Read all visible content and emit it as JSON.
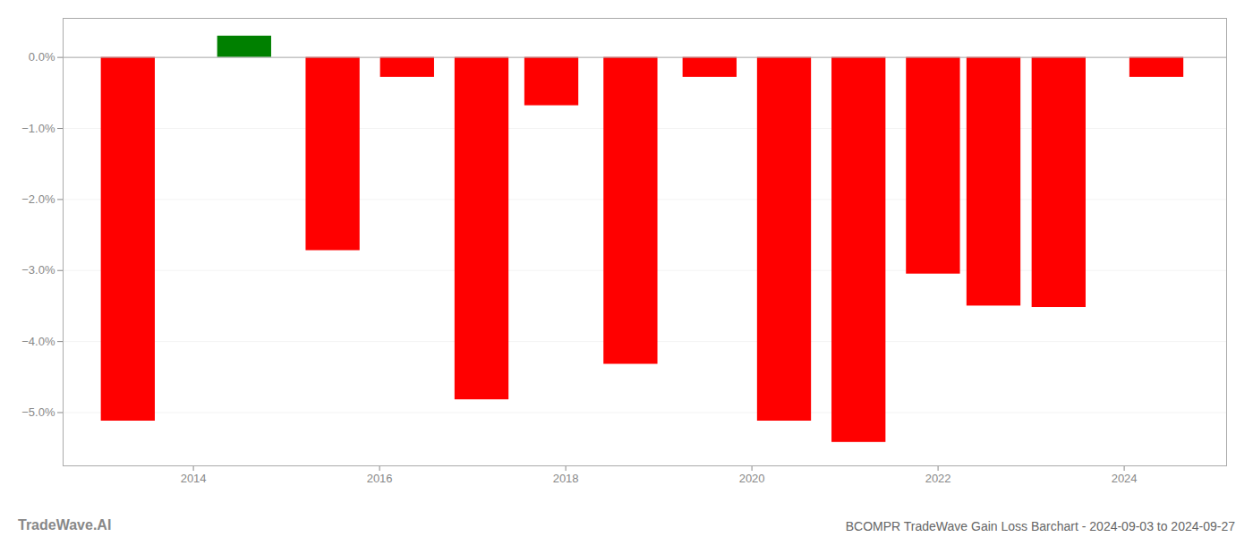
{
  "chart_data": {
    "type": "bar",
    "title": "BCOMPR TradeWave Gain Loss Barchart - 2024-09-03 to 2024-09-27",
    "annotations": [
      "TradeWave.AI"
    ],
    "x": [
      2013.3,
      2014.55,
      2015.5,
      2016.3,
      2017.1,
      2017.85,
      2018.7,
      2019.55,
      2020.35,
      2021.15,
      2021.95,
      2022.6,
      2023.3,
      2024.35
    ],
    "values": [
      -5.12,
      0.3,
      -2.72,
      -0.28,
      -4.82,
      -0.68,
      -4.32,
      -0.28,
      -5.12,
      -5.42,
      -3.05,
      -3.5,
      -3.52,
      -0.28
    ],
    "colors": [
      "#ff0000",
      "#008000",
      "#ff0000",
      "#ff0000",
      "#ff0000",
      "#ff0000",
      "#ff0000",
      "#ff0000",
      "#ff0000",
      "#ff0000",
      "#ff0000",
      "#ff0000",
      "#ff0000",
      "#ff0000"
    ],
    "xlim": [
      2012.6,
      2025.1
    ],
    "xticks": [
      2014,
      2016,
      2018,
      2020,
      2022,
      2024
    ],
    "ylim": [
      -5.75,
      0.55
    ],
    "yticks": [
      {
        "value": 0.0,
        "label": "0.0%"
      },
      {
        "value": -1.0,
        "label": "−1.0%"
      },
      {
        "value": -2.0,
        "label": "−2.0%"
      },
      {
        "value": -3.0,
        "label": "−3.0%"
      },
      {
        "value": -4.0,
        "label": "−4.0%"
      },
      {
        "value": -5.0,
        "label": "−5.0%"
      }
    ],
    "grid": true
  }
}
